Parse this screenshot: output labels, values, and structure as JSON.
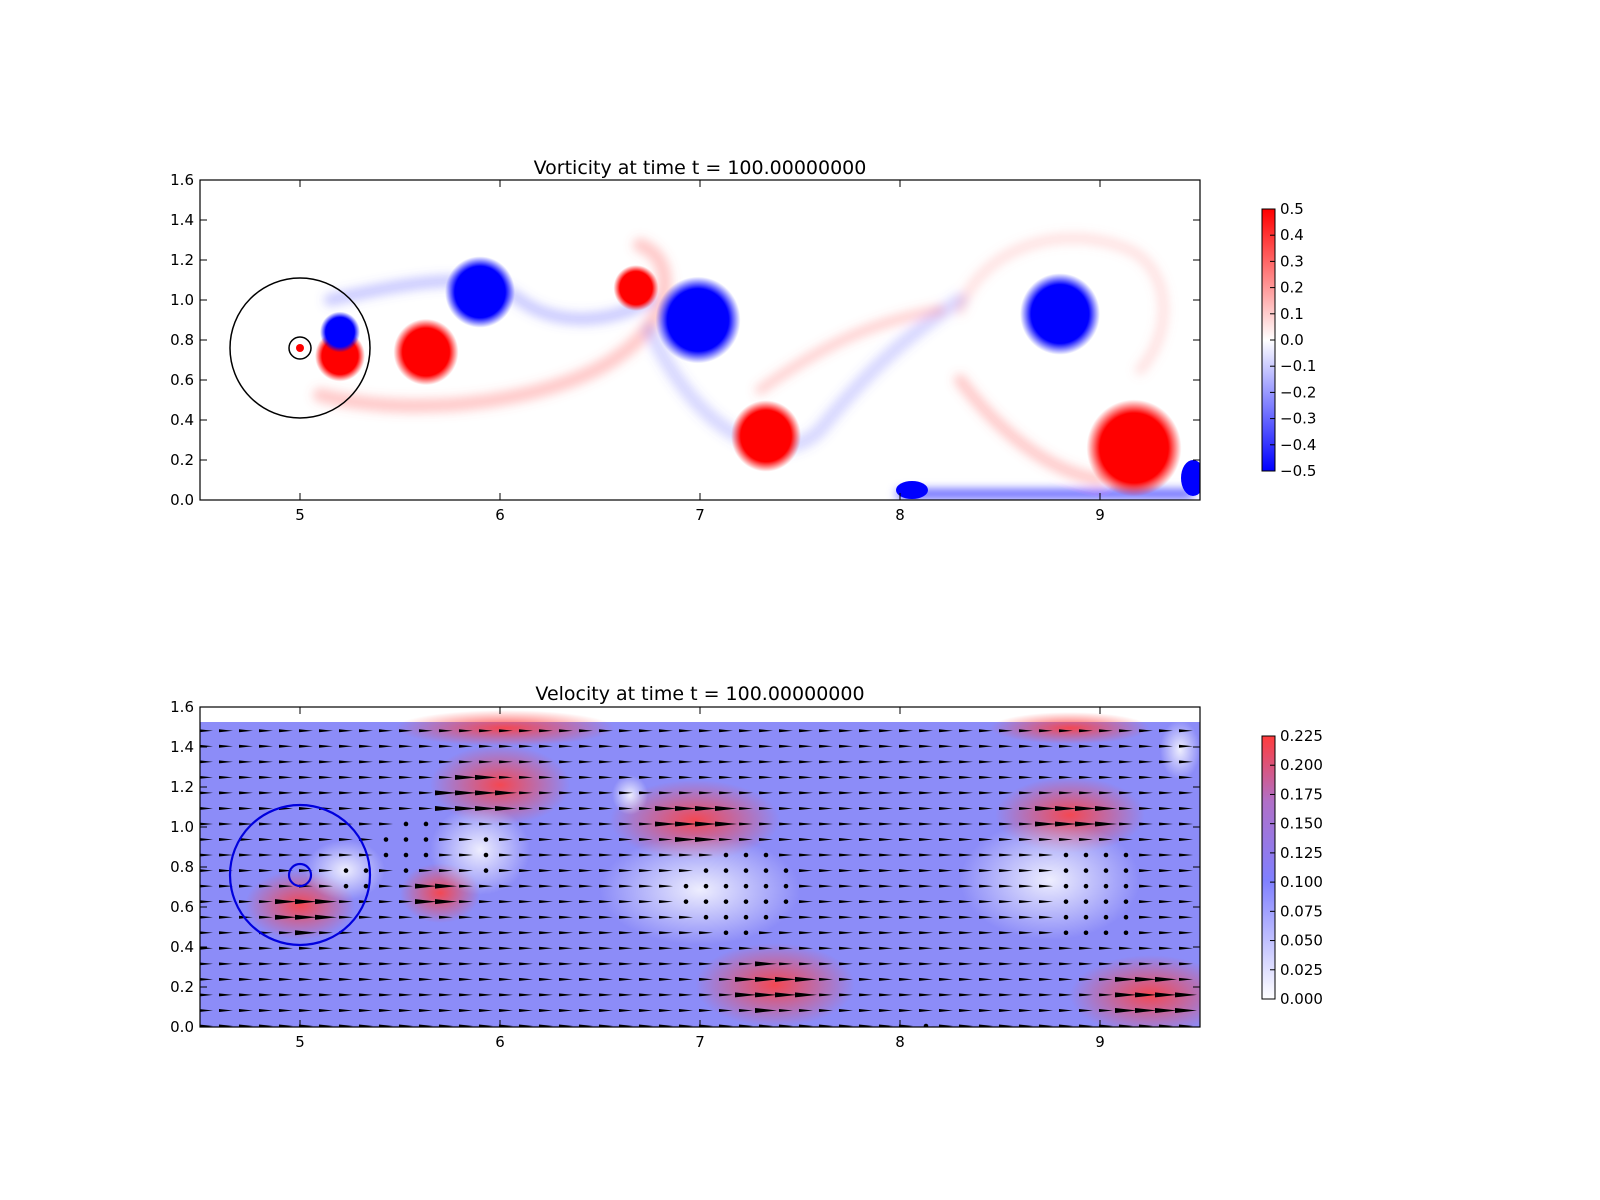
{
  "chart_data": [
    {
      "type": "heatmap",
      "title": "Vorticity at time t =   100.00000000",
      "xlim": [
        4.5,
        9.5
      ],
      "ylim": [
        0.0,
        1.6
      ],
      "xticks": [
        "5",
        "6",
        "7",
        "8",
        "9"
      ],
      "yticks": [
        "0.0",
        "0.2",
        "0.4",
        "0.6",
        "0.8",
        "1.0",
        "1.2",
        "1.4",
        "1.6"
      ],
      "grid": false,
      "colormap": {
        "low": "#0000ff",
        "mid": "#ffffff",
        "high": "#ff0000"
      },
      "colorbar": {
        "range": [
          -0.5,
          0.5
        ],
        "ticks": [
          "0.5",
          "0.4",
          "0.3",
          "0.2",
          "0.1",
          "0.0",
          "−0.1",
          "−0.2",
          "−0.3",
          "−0.4",
          "−0.5"
        ]
      },
      "vortices": [
        {
          "x": 5.63,
          "y": 0.74,
          "r": 0.13,
          "sign": 1
        },
        {
          "x": 5.9,
          "y": 1.04,
          "r": 0.14,
          "sign": -1
        },
        {
          "x": 6.68,
          "y": 1.06,
          "r": 0.09,
          "sign": 1
        },
        {
          "x": 6.99,
          "y": 0.9,
          "r": 0.17,
          "sign": -1
        },
        {
          "x": 7.33,
          "y": 0.32,
          "r": 0.14,
          "sign": 1
        },
        {
          "x": 8.8,
          "y": 0.93,
          "r": 0.16,
          "sign": -1
        },
        {
          "x": 9.17,
          "y": 0.26,
          "r": 0.19,
          "sign": 1
        },
        {
          "x": 5.2,
          "y": 0.72,
          "r": 0.1,
          "sign": 1
        },
        {
          "x": 5.2,
          "y": 0.84,
          "r": 0.08,
          "sign": -1
        }
      ],
      "circles": [
        {
          "x": 5.0,
          "y": 0.76,
          "r": 0.35,
          "color": "#000000"
        },
        {
          "x": 5.0,
          "y": 0.76,
          "r": 0.055,
          "color": "#000000"
        }
      ]
    },
    {
      "type": "heatmap",
      "title": "Velocity at time t =   100.00000000",
      "xlim": [
        4.5,
        9.5
      ],
      "ylim": [
        0.0,
        1.6
      ],
      "xticks": [
        "5",
        "6",
        "7",
        "8",
        "9"
      ],
      "yticks": [
        "0.0",
        "0.2",
        "0.4",
        "0.6",
        "0.8",
        "1.0",
        "1.2",
        "1.4",
        "1.6"
      ],
      "grid": false,
      "colormap": {
        "low": "#ffffff",
        "mid": "#8080ff",
        "high": "#ff3c3c"
      },
      "colorbar": {
        "range": [
          0.0,
          0.225
        ],
        "ticks": [
          "0.225",
          "0.200",
          "0.175",
          "0.150",
          "0.125",
          "0.100",
          "0.075",
          "0.050",
          "0.025",
          "0.000"
        ]
      },
      "quiver": {
        "color": "#000000",
        "direction": "+x"
      },
      "circles": [
        {
          "x": 5.0,
          "y": 0.76,
          "r": 0.35,
          "color": "#0000dd"
        },
        {
          "x": 5.0,
          "y": 0.76,
          "r": 0.055,
          "color": "#0000dd"
        }
      ]
    }
  ]
}
